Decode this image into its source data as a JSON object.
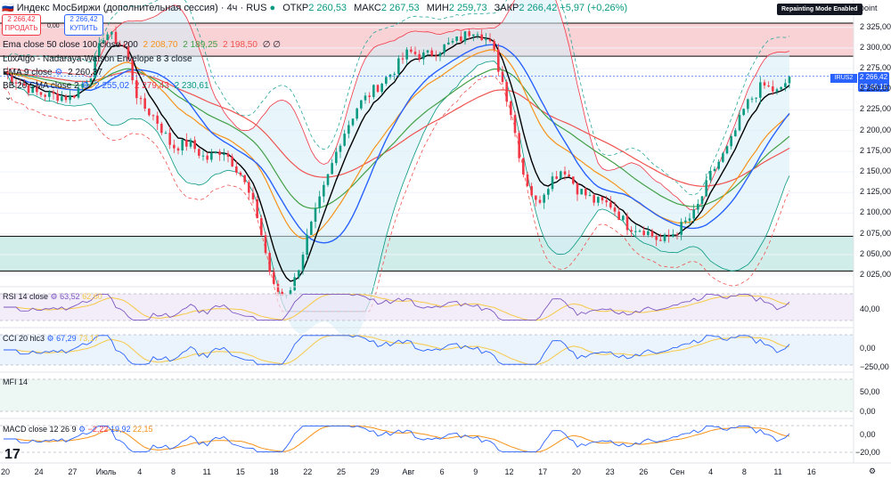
{
  "header": {
    "title": "Индекс МосБиржи (дополнительная сессия) · 4ч · RUS",
    "open_label": "ОТКР",
    "open": "2 260,53",
    "high_label": "МАКС",
    "high": "2 267,53",
    "low_label": "МИН",
    "low": "2 259,73",
    "close_label": "ЗАКР",
    "close": "2 266,42",
    "change": "+5,97 (+0,26%)"
  },
  "trade": {
    "sell_price": "2 266,42",
    "sell_label": "ПРОДАТЬ",
    "buy_price": "2 266,42",
    "buy_label": "КУПИТЬ",
    "spread": "0,00"
  },
  "badge": "Repainting Mode Enabled",
  "unit": "point",
  "legends": {
    "ema": {
      "label": "Ema close 50 close 100 close 200",
      "v1": "2 208,70",
      "v2": "2 189,25",
      "v3": "2 198,50",
      "suffix": "∅ ∅"
    },
    "lux": {
      "label": "LuxAlgo - Nadaraya-Watson Envelope 8 3 close"
    },
    "ema9": {
      "label": "EMA 9 close",
      "v1": "2 260,37"
    },
    "bb": {
      "label": "BB 20 SMA close 2",
      "v1": "2 255,02",
      "v2": "2 279,43",
      "v3": "2 230,61"
    }
  },
  "price_tag": {
    "symbol": "IRUS2",
    "price": "2 266,42",
    "time": "03:46:15"
  },
  "indicators": {
    "rsi": {
      "label": "RSI 14 close",
      "v1": "63,52",
      "v2": "62,60"
    },
    "cci": {
      "label": "CCI 20 hlc3",
      "v1": "67,29",
      "v2": "73,17"
    },
    "mfi": {
      "label": "MFI 14"
    },
    "macd": {
      "label": "MACD close 12 26 9",
      "v1": "−2,22",
      "v2": "19,92",
      "v3": "22,15"
    }
  },
  "sub_ticks": {
    "rsi": [
      "40,00"
    ],
    "cci": [
      "0,00",
      "−250,00"
    ],
    "mfi": [
      "50,00",
      "0,00"
    ],
    "macd": [
      "0,00",
      "−20,00"
    ]
  },
  "colors": {
    "up": "#089981",
    "down": "#f23645",
    "ema9": "#000000",
    "ema50": "#f7931a",
    "ema100": "#43a047",
    "ema200": "#ef5350",
    "bb_basis": "#2962ff",
    "resistance_zone": "#f8c7cb",
    "support_zone": "#c5e8e3"
  },
  "chart_data": {
    "type": "candlestick",
    "y_ticks": [
      2325,
      2300,
      2275,
      2250,
      2225,
      2200,
      2175,
      2150,
      2125,
      2100,
      2075,
      2050,
      2025
    ],
    "y_tick_labels": [
      "2 325,00",
      "2 300,00",
      "2 275,00",
      "2 250,00",
      "2 225,00",
      "2 200,00",
      "2 175,00",
      "2 150,00",
      "2 125,00",
      "2 100,00",
      "2 075,00",
      "2 050,00",
      "2 025,00"
    ],
    "ylim": [
      2011,
      2343
    ],
    "x_labels": [
      "20",
      "24",
      "27",
      "Июль",
      "4",
      "8",
      "11",
      "15",
      "18",
      "22",
      "25",
      "29",
      "Авг",
      "6",
      "9",
      "12",
      "17",
      "20",
      "23",
      "26",
      "Сен",
      "4",
      "8",
      "11",
      "16"
    ],
    "zones": [
      {
        "name": "resistance",
        "from": 2290,
        "to": 2330
      },
      {
        "name": "support",
        "from": 2030,
        "to": 2072
      }
    ],
    "anchors": [
      [
        0,
        2270
      ],
      [
        1,
        2245
      ],
      [
        2,
        2240
      ],
      [
        2.6,
        2270
      ],
      [
        3,
        2320
      ],
      [
        3.6,
        2300
      ],
      [
        4,
        2235
      ],
      [
        4.5,
        2215
      ],
      [
        5,
        2180
      ],
      [
        5.5,
        2185
      ],
      [
        6,
        2165
      ],
      [
        6.5,
        2178
      ],
      [
        7,
        2150
      ],
      [
        7.5,
        2100
      ],
      [
        8,
        2010
      ],
      [
        8.3,
        2000
      ],
      [
        8.6,
        2015
      ],
      [
        9,
        2070
      ],
      [
        9.5,
        2130
      ],
      [
        10,
        2190
      ],
      [
        10.5,
        2230
      ],
      [
        11,
        2250
      ],
      [
        11.5,
        2270
      ],
      [
        12,
        2295
      ],
      [
        12.5,
        2290
      ],
      [
        13,
        2300
      ],
      [
        13.5,
        2310
      ],
      [
        14,
        2325
      ],
      [
        14.5,
        2300
      ],
      [
        15,
        2230
      ],
      [
        15.4,
        2150
      ],
      [
        15.8,
        2110
      ],
      [
        16.2,
        2140
      ],
      [
        16.6,
        2155
      ],
      [
        17,
        2130
      ],
      [
        17.5,
        2115
      ],
      [
        18,
        2110
      ],
      [
        18.5,
        2085
      ],
      [
        19,
        2080
      ],
      [
        19.5,
        2065
      ],
      [
        20,
        2080
      ],
      [
        20.5,
        2100
      ],
      [
        21,
        2150
      ],
      [
        21.5,
        2180
      ],
      [
        22,
        2230
      ],
      [
        22.5,
        2255
      ],
      [
        23,
        2245
      ],
      [
        23.3,
        2266
      ]
    ]
  }
}
